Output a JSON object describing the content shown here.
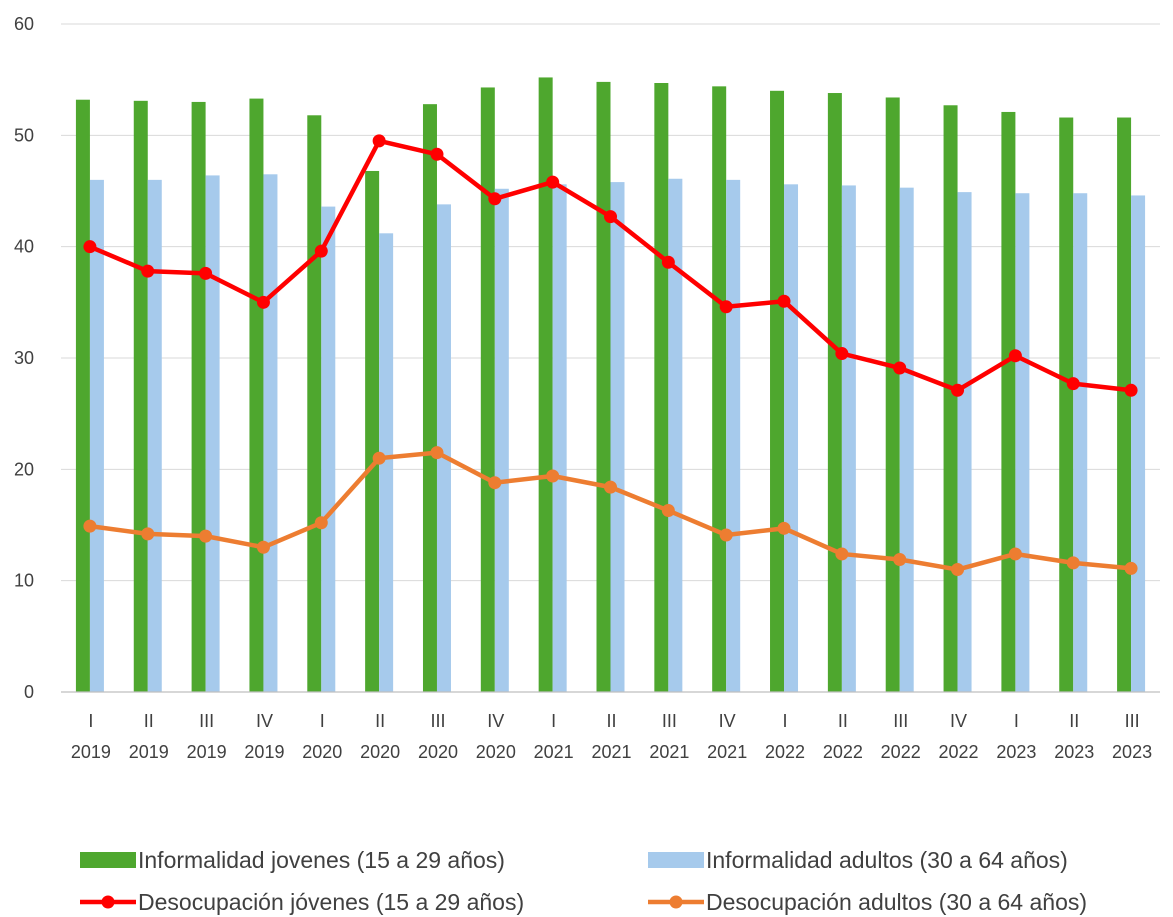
{
  "chart_data": {
    "type": "bar",
    "categories": [
      [
        "I",
        "2019"
      ],
      [
        "II",
        "2019"
      ],
      [
        "III",
        "2019"
      ],
      [
        "IV",
        "2019"
      ],
      [
        "I",
        "2020"
      ],
      [
        "II",
        "2020"
      ],
      [
        "III",
        "2020"
      ],
      [
        "IV",
        "2020"
      ],
      [
        "I",
        "2021"
      ],
      [
        "II",
        "2021"
      ],
      [
        "III",
        "2021"
      ],
      [
        "IV",
        "2021"
      ],
      [
        "I",
        "2022"
      ],
      [
        "II",
        "2022"
      ],
      [
        "III",
        "2022"
      ],
      [
        "IV",
        "2022"
      ],
      [
        "I",
        "2023"
      ],
      [
        "II",
        "2023"
      ],
      [
        "III",
        "2023"
      ]
    ],
    "ylim": [
      0,
      60
    ],
    "yticks": [
      0,
      10,
      20,
      30,
      40,
      50,
      60
    ],
    "grid": true,
    "legend_position": "bottom",
    "series": [
      {
        "name": "Informalidad jovenes (15 a 29 años)",
        "kind": "bar",
        "color": "#4ea72e",
        "values": [
          53.2,
          53.1,
          53.0,
          53.3,
          51.8,
          46.8,
          52.8,
          54.3,
          55.2,
          54.8,
          54.7,
          54.4,
          54.0,
          53.8,
          53.4,
          52.7,
          52.1,
          51.6,
          51.6
        ]
      },
      {
        "name": "Informalidad adultos (30 a 64 años)",
        "kind": "bar",
        "color": "#a6caec",
        "values": [
          46.0,
          46.0,
          46.4,
          46.5,
          43.6,
          41.2,
          43.8,
          45.2,
          45.6,
          45.8,
          46.1,
          46.0,
          45.6,
          45.5,
          45.3,
          44.9,
          44.8,
          44.8,
          44.6
        ]
      },
      {
        "name": "Desocupación jóvenes (15 a 29 años)",
        "kind": "line",
        "color": "#ff0000",
        "values": [
          40.0,
          37.8,
          37.6,
          35.0,
          39.6,
          49.5,
          48.3,
          44.3,
          45.8,
          42.7,
          38.6,
          34.6,
          35.1,
          30.4,
          29.1,
          27.1,
          30.2,
          27.7,
          27.1
        ]
      },
      {
        "name": "Desocupación adultos (30 a 64 años)",
        "kind": "line",
        "color": "#ed7d31",
        "values": [
          14.9,
          14.2,
          14.0,
          13.0,
          15.2,
          21.0,
          21.5,
          18.8,
          19.4,
          18.4,
          16.3,
          14.1,
          14.7,
          12.4,
          11.9,
          11.0,
          12.4,
          11.6,
          11.1
        ]
      }
    ]
  }
}
